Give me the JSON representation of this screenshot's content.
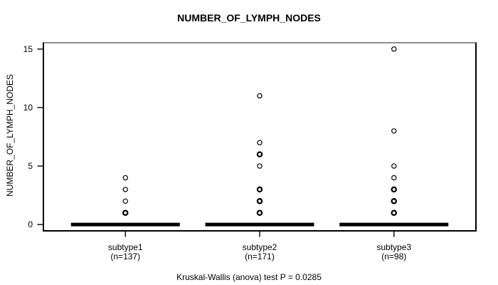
{
  "chart_data": {
    "type": "scatter",
    "style": "stripchart",
    "title": "NUMBER_OF_LYMPH_NODES",
    "ylabel": "NUMBER_OF_LYMPH_NODES",
    "xlabel": "",
    "footer": "Kruskal-Wallis (anova) test P = 0.0285",
    "p_value": 0.0285,
    "ylim": [
      0,
      15
    ],
    "y_ticks": [
      0,
      5,
      10,
      15
    ],
    "grid": false,
    "legend": "none",
    "marker": "open-circle",
    "colors": {
      "points": "#000000",
      "axis": "#000000",
      "zero_bar": "#000000",
      "background": "#ffffff",
      "box_top": "#8d8d8d"
    },
    "groups": [
      {
        "label": "subtype1",
        "n_label": "(n=137)",
        "points": [
          4,
          3,
          2,
          1
        ],
        "emphasized_points": [
          1
        ],
        "zero_bar": true
      },
      {
        "label": "subtype2",
        "n_label": "(n=171)",
        "points": [
          11,
          7,
          6,
          5,
          3,
          2,
          1
        ],
        "emphasized_points": [
          6,
          3,
          2,
          1
        ],
        "zero_bar": true
      },
      {
        "label": "subtype3",
        "n_label": "(n=98)",
        "points": [
          15,
          8,
          5,
          4,
          3,
          2,
          1
        ],
        "emphasized_points": [
          3,
          2,
          1
        ],
        "zero_bar": true
      }
    ]
  }
}
